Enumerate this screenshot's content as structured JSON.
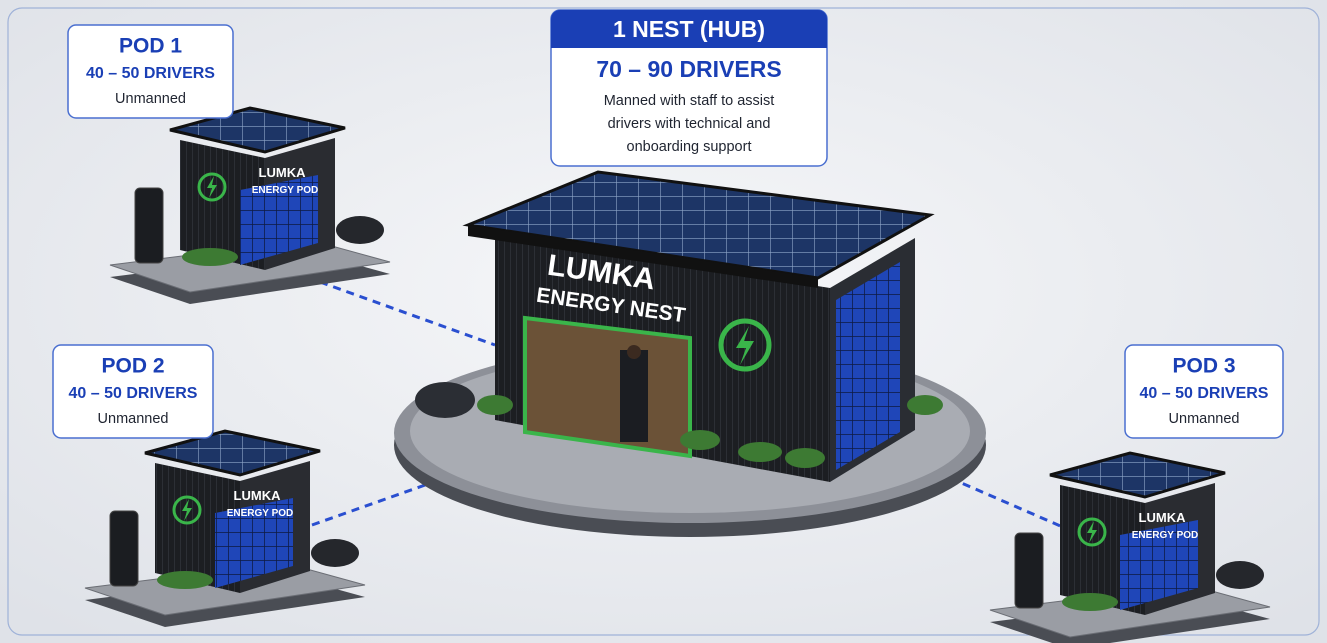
{
  "hub": {
    "title": "1 NEST (HUB)",
    "drivers": "70 – 90 DRIVERS",
    "description": [
      "Manned with staff to assist",
      "drivers with technical and",
      "onboarding support"
    ],
    "sign": [
      "LUMKA",
      "ENERGY NEST"
    ]
  },
  "pods": [
    {
      "name": "POD 1",
      "drivers": "40 – 50 DRIVERS",
      "status": "Unmanned",
      "sign": [
        "LUMKA",
        "ENERGY POD"
      ]
    },
    {
      "name": "POD 2",
      "drivers": "40 – 50 DRIVERS",
      "status": "Unmanned",
      "sign": [
        "LUMKA",
        "ENERGY POD"
      ]
    },
    {
      "name": "POD 3",
      "drivers": "40 – 50 DRIVERS",
      "status": "Unmanned",
      "sign": [
        "LUMKA",
        "ENERGY POD"
      ]
    }
  ]
}
